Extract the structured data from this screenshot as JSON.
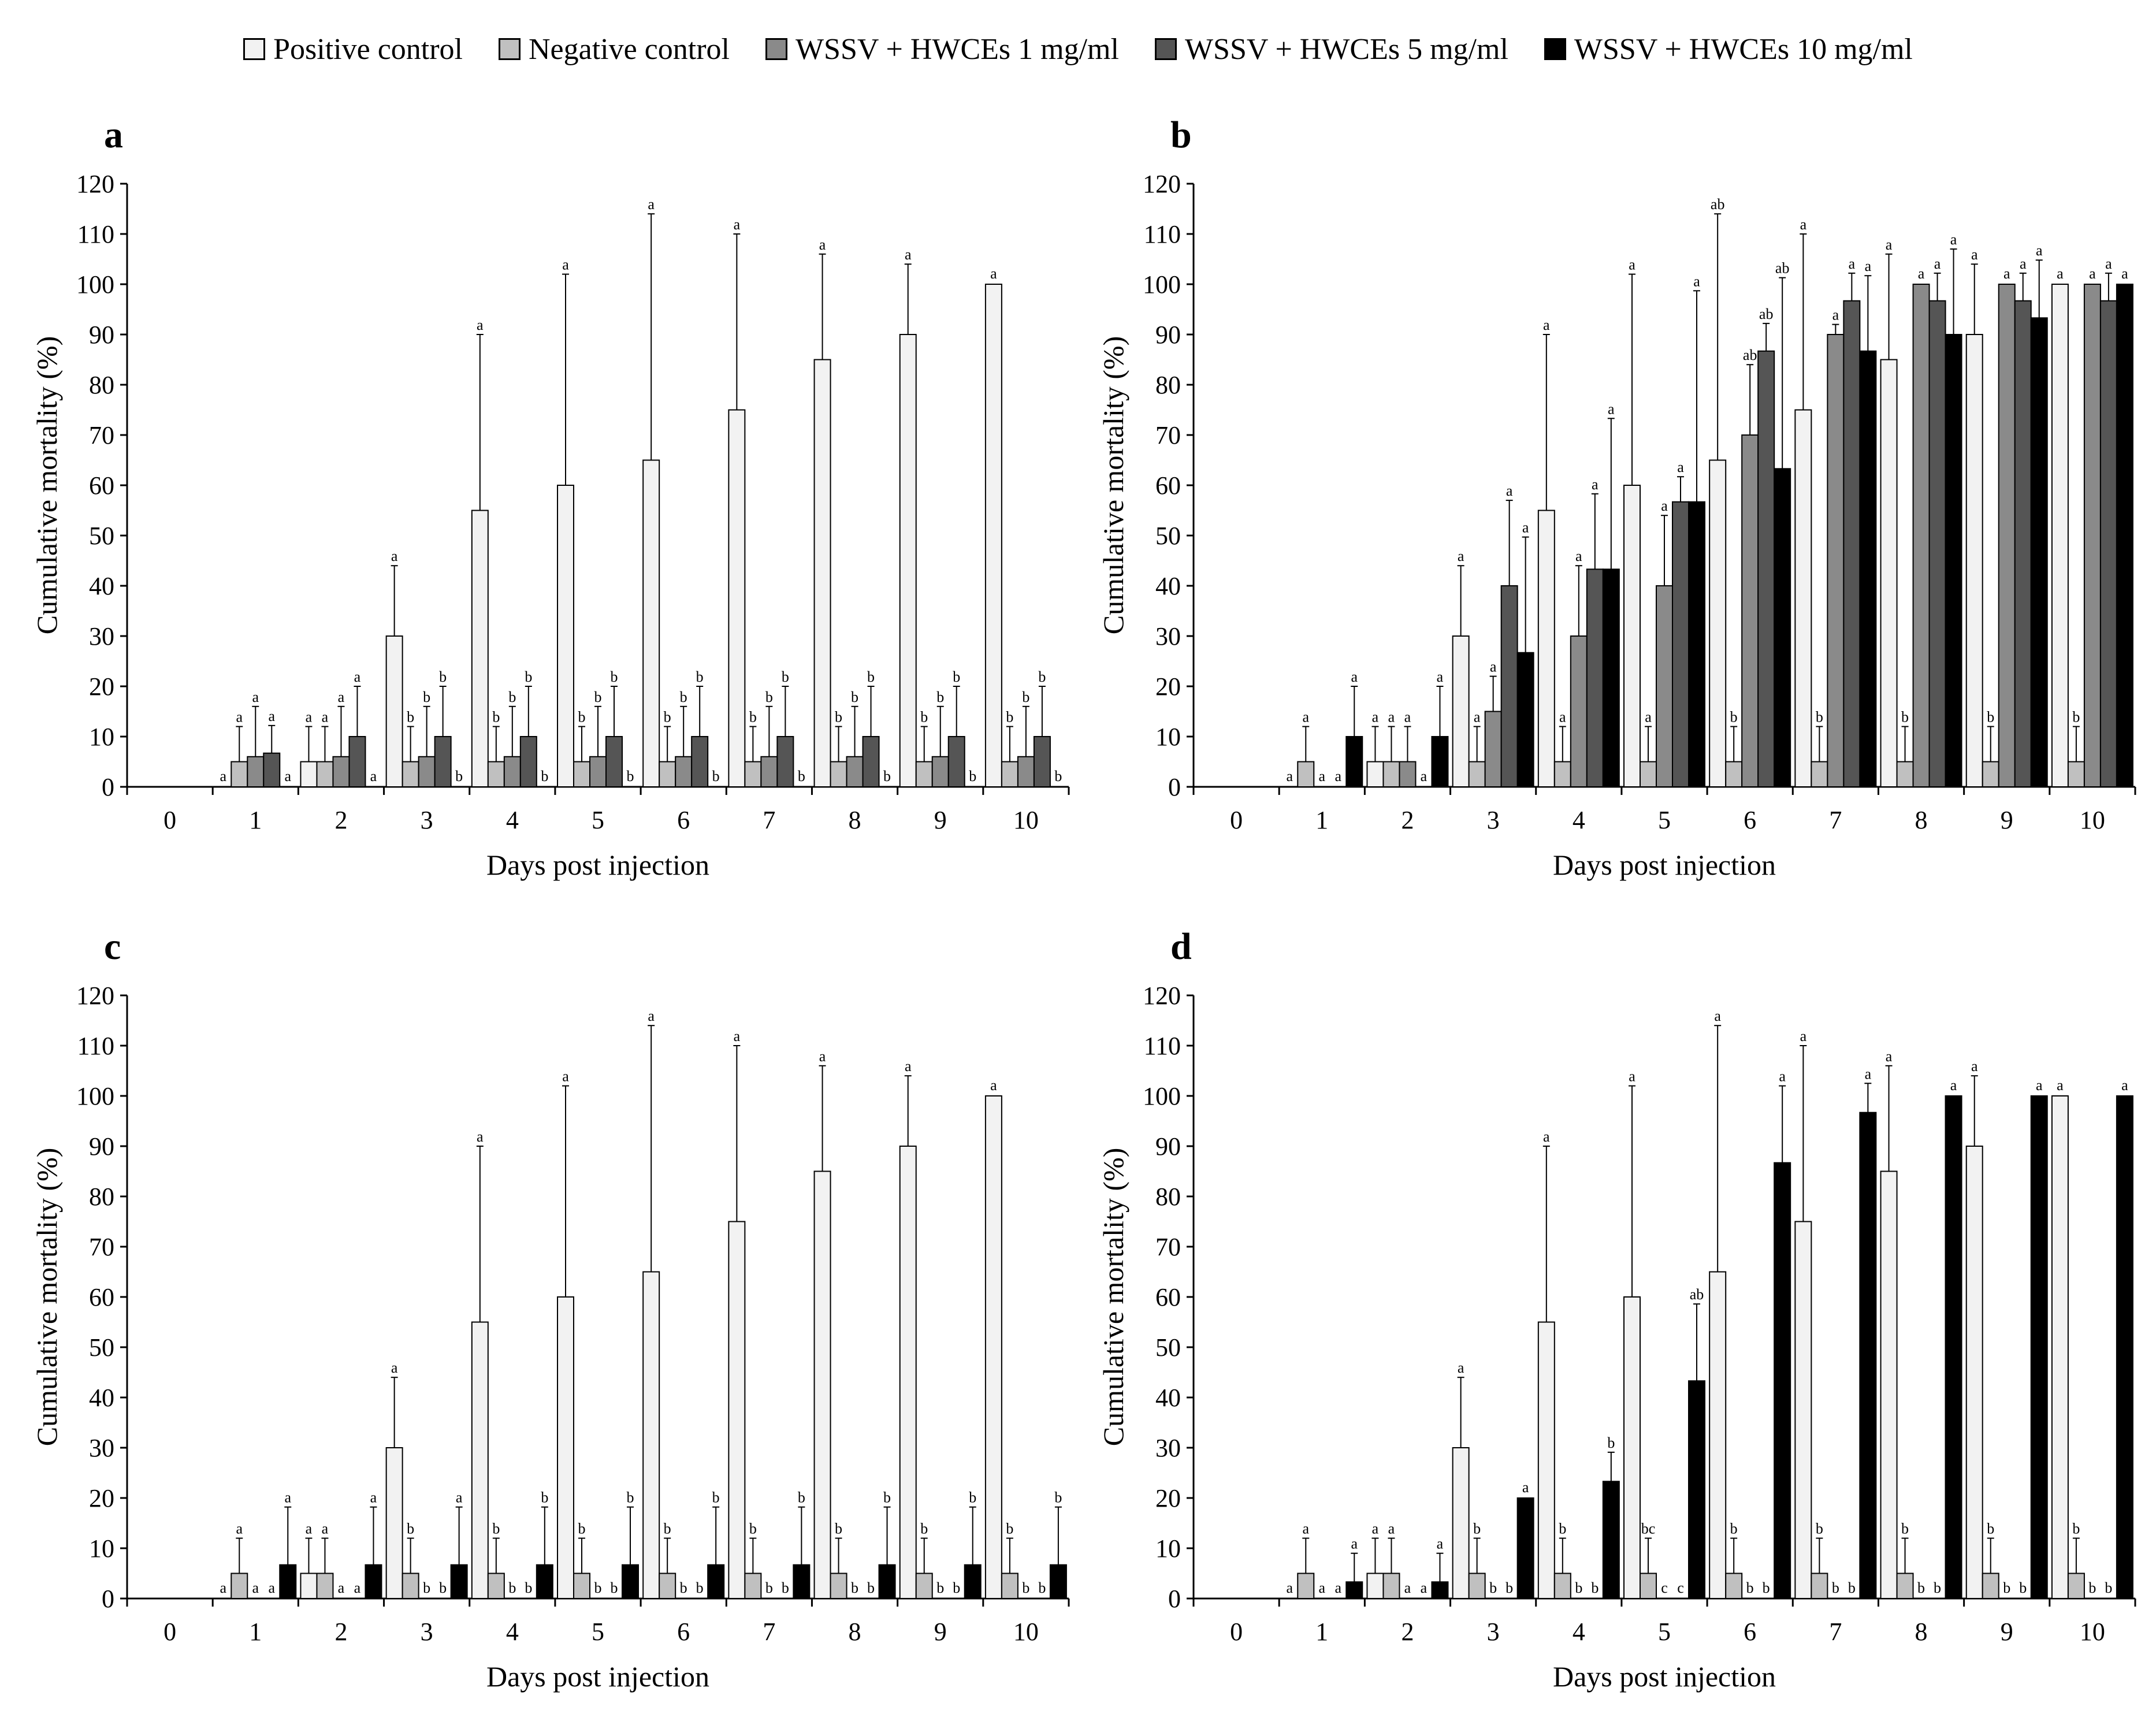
{
  "legend": [
    {
      "label": "Positive control",
      "color": "#f2f2f2"
    },
    {
      "label": "Negative control",
      "color": "#c0c0c0"
    },
    {
      "label": "WSSV + HWCEs 1 mg/ml",
      "color": "#8a8a8a"
    },
    {
      "label": "WSSV + HWCEs 5 mg/ml",
      "color": "#555555"
    },
    {
      "label": "WSSV + HWCEs 10 mg/ml",
      "color": "#000000"
    }
  ],
  "chart_data": [
    {
      "id": "a",
      "panel_label": "a",
      "type": "bar",
      "xlabel": "Days post injection",
      "ylabel": "Cumulative mortality (%)",
      "ylim": [
        0,
        120
      ],
      "yticks": [
        0,
        10,
        20,
        30,
        40,
        50,
        60,
        70,
        80,
        90,
        100,
        110,
        120
      ],
      "categories": [
        "0",
        "1",
        "2",
        "3",
        "4",
        "5",
        "6",
        "7",
        "8",
        "9",
        "10"
      ],
      "series": [
        {
          "name": "Positive control",
          "color": "#f2f2f2",
          "values": [
            0,
            0,
            5,
            30,
            55,
            60,
            65,
            75,
            85,
            90,
            100
          ],
          "errors": [
            0,
            0,
            7,
            14,
            35,
            42,
            49,
            35,
            21,
            14,
            0
          ],
          "labels": [
            "",
            "a",
            "a",
            "a",
            "a",
            "a",
            "a",
            "a",
            "a",
            "a",
            "a"
          ]
        },
        {
          "name": "Negative control",
          "color": "#c0c0c0",
          "values": [
            0,
            5,
            5,
            5,
            5,
            5,
            5,
            5,
            5,
            5,
            5
          ],
          "errors": [
            0,
            7,
            7,
            7,
            7,
            7,
            7,
            7,
            7,
            7,
            7
          ],
          "labels": [
            "",
            "a",
            "a",
            "b",
            "b",
            "b",
            "b",
            "b",
            "b",
            "b",
            "b"
          ]
        },
        {
          "name": "WSSV + HWCEs 1 mg/ml",
          "color": "#8a8a8a",
          "values": [
            0,
            6,
            6,
            6,
            6,
            6,
            6,
            6,
            6,
            6,
            6
          ],
          "errors": [
            0,
            10,
            10,
            10,
            10,
            10,
            10,
            10,
            10,
            10,
            10
          ],
          "labels": [
            "",
            "a",
            "a",
            "b",
            "b",
            "b",
            "b",
            "b",
            "b",
            "b",
            "b"
          ]
        },
        {
          "name": "WSSV + HWCEs 5 mg/ml",
          "color": "#555555",
          "values": [
            0,
            6.7,
            10,
            10,
            10,
            10,
            10,
            10,
            10,
            10,
            10
          ],
          "errors": [
            0,
            5.5,
            10,
            10,
            10,
            10,
            10,
            10,
            10,
            10,
            10
          ],
          "labels": [
            "",
            "a",
            "a",
            "b",
            "b",
            "b",
            "b",
            "b",
            "b",
            "b",
            "b"
          ]
        },
        {
          "name": "WSSV + HWCEs 10 mg/ml",
          "color": "#000000",
          "values": [
            0,
            0,
            0,
            0,
            0,
            0,
            0,
            0,
            0,
            0,
            0
          ],
          "errors": [
            0,
            0,
            0,
            0,
            0,
            0,
            0,
            0,
            0,
            0,
            0
          ],
          "labels": [
            "",
            "a",
            "a",
            "b",
            "b",
            "b",
            "b",
            "b",
            "b",
            "b",
            "b"
          ]
        }
      ]
    },
    {
      "id": "b",
      "panel_label": "b",
      "type": "bar",
      "xlabel": "Days post injection",
      "ylabel": "Cumulative mortality (%)",
      "ylim": [
        0,
        120
      ],
      "yticks": [
        0,
        10,
        20,
        30,
        40,
        50,
        60,
        70,
        80,
        90,
        100,
        110,
        120
      ],
      "categories": [
        "0",
        "1",
        "2",
        "3",
        "4",
        "5",
        "6",
        "7",
        "8",
        "9",
        "10"
      ],
      "series": [
        {
          "name": "Positive control",
          "color": "#f2f2f2",
          "values": [
            0,
            0,
            5,
            30,
            55,
            60,
            65,
            75,
            85,
            90,
            100
          ],
          "errors": [
            0,
            0,
            7,
            14,
            35,
            42,
            49,
            35,
            21,
            14,
            0
          ],
          "labels": [
            "",
            "a",
            "a",
            "a",
            "a",
            "a",
            "ab",
            "a",
            "a",
            "a",
            "a"
          ]
        },
        {
          "name": "Negative control",
          "color": "#c0c0c0",
          "values": [
            0,
            5,
            5,
            5,
            5,
            5,
            5,
            5,
            5,
            5,
            5
          ],
          "errors": [
            0,
            7,
            7,
            7,
            7,
            7,
            7,
            7,
            7,
            7,
            7
          ],
          "labels": [
            "",
            "a",
            "a",
            "a",
            "a",
            "a",
            "b",
            "b",
            "b",
            "b",
            "b"
          ]
        },
        {
          "name": "WSSV + HWCEs 1 mg/ml",
          "color": "#8a8a8a",
          "values": [
            0,
            0,
            5,
            15,
            30,
            40,
            70,
            90,
            100,
            100,
            100
          ],
          "errors": [
            0,
            0,
            7,
            7,
            14,
            14,
            14,
            2,
            0,
            0,
            0
          ],
          "labels": [
            "",
            "a",
            "a",
            "a",
            "a",
            "a",
            "ab",
            "a",
            "a",
            "a",
            "a"
          ]
        },
        {
          "name": "WSSV + HWCEs 5 mg/ml",
          "color": "#555555",
          "values": [
            0,
            0,
            0,
            40,
            43.3,
            56.7,
            86.7,
            96.7,
            96.7,
            96.7,
            96.7
          ],
          "errors": [
            0,
            0,
            0,
            17,
            15,
            5,
            5.5,
            5.5,
            5.5,
            5.5,
            5.5
          ],
          "labels": [
            "",
            "a",
            "a",
            "a",
            "a",
            "a",
            "ab",
            "a",
            "a",
            "a",
            "a"
          ]
        },
        {
          "name": "WSSV + HWCEs 10 mg/ml",
          "color": "#000000",
          "values": [
            0,
            10,
            10,
            26.7,
            43.3,
            56.7,
            63.3,
            86.7,
            90,
            93.3,
            100
          ],
          "errors": [
            0,
            10,
            10,
            23,
            30,
            42,
            38,
            15,
            17,
            11.5,
            0
          ],
          "labels": [
            "",
            "a",
            "a",
            "a",
            "a",
            "a",
            "ab",
            "a",
            "a",
            "a",
            "a"
          ]
        }
      ]
    },
    {
      "id": "c",
      "panel_label": "c",
      "type": "bar",
      "xlabel": "Days post injection",
      "ylabel": "Cumulative mortality (%)",
      "ylim": [
        0,
        120
      ],
      "yticks": [
        0,
        10,
        20,
        30,
        40,
        50,
        60,
        70,
        80,
        90,
        100,
        110,
        120
      ],
      "categories": [
        "0",
        "1",
        "2",
        "3",
        "4",
        "5",
        "6",
        "7",
        "8",
        "9",
        "10"
      ],
      "series": [
        {
          "name": "Positive control",
          "color": "#f2f2f2",
          "values": [
            0,
            0,
            5,
            30,
            55,
            60,
            65,
            75,
            85,
            90,
            100
          ],
          "errors": [
            0,
            0,
            7,
            14,
            35,
            42,
            49,
            35,
            21,
            14,
            0
          ],
          "labels": [
            "",
            "a",
            "a",
            "a",
            "a",
            "a",
            "a",
            "a",
            "a",
            "a",
            "a"
          ]
        },
        {
          "name": "Negative control",
          "color": "#c0c0c0",
          "values": [
            0,
            5,
            5,
            5,
            5,
            5,
            5,
            5,
            5,
            5,
            5
          ],
          "errors": [
            0,
            7,
            7,
            7,
            7,
            7,
            7,
            7,
            7,
            7,
            7
          ],
          "labels": [
            "",
            "a",
            "a",
            "b",
            "b",
            "b",
            "b",
            "b",
            "b",
            "b",
            "b"
          ]
        },
        {
          "name": "WSSV + HWCEs 1 mg/ml",
          "color": "#8a8a8a",
          "values": [
            0,
            0,
            0,
            0,
            0,
            0,
            0,
            0,
            0,
            0,
            0
          ],
          "errors": [
            0,
            0,
            0,
            0,
            0,
            0,
            0,
            0,
            0,
            0,
            0
          ],
          "labels": [
            "",
            "a",
            "a",
            "b",
            "b",
            "b",
            "b",
            "b",
            "b",
            "b",
            "b"
          ]
        },
        {
          "name": "WSSV + HWCEs 5 mg/ml",
          "color": "#555555",
          "values": [
            0,
            0,
            0,
            0,
            0,
            0,
            0,
            0,
            0,
            0,
            0
          ],
          "errors": [
            0,
            0,
            0,
            0,
            0,
            0,
            0,
            0,
            0,
            0,
            0
          ],
          "labels": [
            "",
            "a",
            "a",
            "b",
            "b",
            "b",
            "b",
            "b",
            "b",
            "b",
            "b"
          ]
        },
        {
          "name": "WSSV + HWCEs 10 mg/ml",
          "color": "#000000",
          "values": [
            0,
            6.7,
            6.7,
            6.7,
            6.7,
            6.7,
            6.7,
            6.7,
            6.7,
            6.7,
            6.7
          ],
          "errors": [
            0,
            11.5,
            11.5,
            11.5,
            11.5,
            11.5,
            11.5,
            11.5,
            11.5,
            11.5,
            11.5
          ],
          "labels": [
            "",
            "a",
            "a",
            "a",
            "b",
            "b",
            "b",
            "b",
            "b",
            "b",
            "b"
          ]
        }
      ]
    },
    {
      "id": "d",
      "panel_label": "d",
      "type": "bar",
      "xlabel": "Days post injection",
      "ylabel": "Cumulative mortality (%)",
      "ylim": [
        0,
        120
      ],
      "yticks": [
        0,
        10,
        20,
        30,
        40,
        50,
        60,
        70,
        80,
        90,
        100,
        110,
        120
      ],
      "categories": [
        "0",
        "1",
        "2",
        "3",
        "4",
        "5",
        "6",
        "7",
        "8",
        "9",
        "10"
      ],
      "series": [
        {
          "name": "Positive control",
          "color": "#f2f2f2",
          "values": [
            0,
            0,
            5,
            30,
            55,
            60,
            65,
            75,
            85,
            90,
            100
          ],
          "errors": [
            0,
            0,
            7,
            14,
            35,
            42,
            49,
            35,
            21,
            14,
            0
          ],
          "labels": [
            "",
            "a",
            "a",
            "a",
            "a",
            "a",
            "a",
            "a",
            "a",
            "a",
            "a"
          ]
        },
        {
          "name": "Negative control",
          "color": "#c0c0c0",
          "values": [
            0,
            5,
            5,
            5,
            5,
            5,
            5,
            5,
            5,
            5,
            5
          ],
          "errors": [
            0,
            7,
            7,
            7,
            7,
            7,
            7,
            7,
            7,
            7,
            7
          ],
          "labels": [
            "",
            "a",
            "a",
            "b",
            "b",
            "bc",
            "b",
            "b",
            "b",
            "b",
            "b"
          ]
        },
        {
          "name": "WSSV + HWCEs 1 mg/ml",
          "color": "#8a8a8a",
          "values": [
            0,
            0,
            0,
            0,
            0,
            0,
            0,
            0,
            0,
            0,
            0
          ],
          "errors": [
            0,
            0,
            0,
            0,
            0,
            0,
            0,
            0,
            0,
            0,
            0
          ],
          "labels": [
            "",
            "a",
            "a",
            "b",
            "b",
            "c",
            "b",
            "b",
            "b",
            "b",
            "b"
          ]
        },
        {
          "name": "WSSV + HWCEs 5 mg/ml",
          "color": "#555555",
          "values": [
            0,
            0,
            0,
            0,
            0,
            0,
            0,
            0,
            0,
            0,
            0
          ],
          "errors": [
            0,
            0,
            0,
            0,
            0,
            0,
            0,
            0,
            0,
            0,
            0
          ],
          "labels": [
            "",
            "a",
            "a",
            "b",
            "b",
            "c",
            "b",
            "b",
            "b",
            "b",
            "b"
          ]
        },
        {
          "name": "WSSV + HWCEs 10 mg/ml",
          "color": "#000000",
          "values": [
            0,
            3.3,
            3.3,
            20,
            23.3,
            43.3,
            86.7,
            96.7,
            100,
            100,
            100
          ],
          "errors": [
            0,
            5.7,
            5.7,
            0,
            5.8,
            15.3,
            15.3,
            5.8,
            0,
            0,
            0
          ],
          "labels": [
            "",
            "a",
            "a",
            "a",
            "b",
            "ab",
            "a",
            "a",
            "a",
            "a",
            "a"
          ]
        }
      ]
    }
  ]
}
